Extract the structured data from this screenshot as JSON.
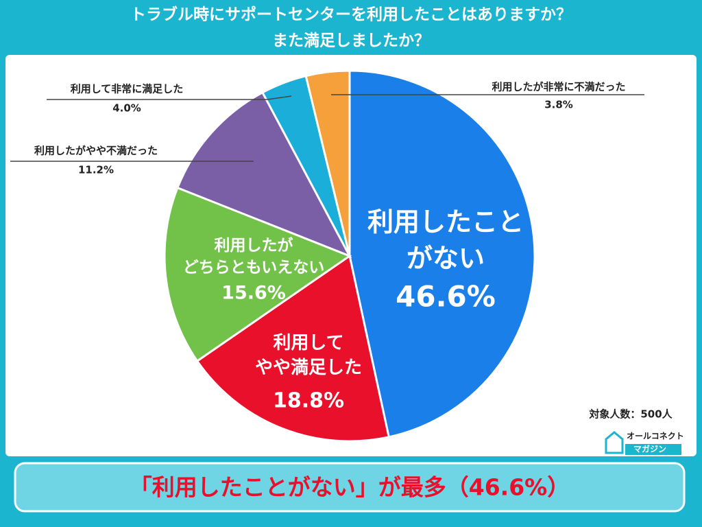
{
  "chart_data": {
    "type": "pie",
    "title_lines": [
      "トラブル時にサポートセンターを利用したことはありますか？",
      "また満足しましたか？"
    ],
    "categories": [
      "利用したこと\nがない",
      "利用して\nやや満足した",
      "利用したが\nどちらともいえない",
      "利用したがやや不満だった",
      "利用して非常に満足した",
      "利用したが非常に不満だった"
    ],
    "values": [
      46.6,
      18.8,
      15.6,
      11.2,
      4.0,
      3.8
    ],
    "value_labels": [
      "46.6%",
      "18.8%",
      "15.6%",
      "11.2%",
      "4.0%",
      "3.8%"
    ],
    "colors": [
      "#1a7fe8",
      "#e8102a",
      "#72c24a",
      "#7b5fa6",
      "#1aaed8",
      "#f5a03a"
    ],
    "note": "対象人数：500人",
    "logo": [
      "オールコネクト",
      "マガジン"
    ],
    "annotation": "「利用したことがない」が最多（46.6%）"
  }
}
